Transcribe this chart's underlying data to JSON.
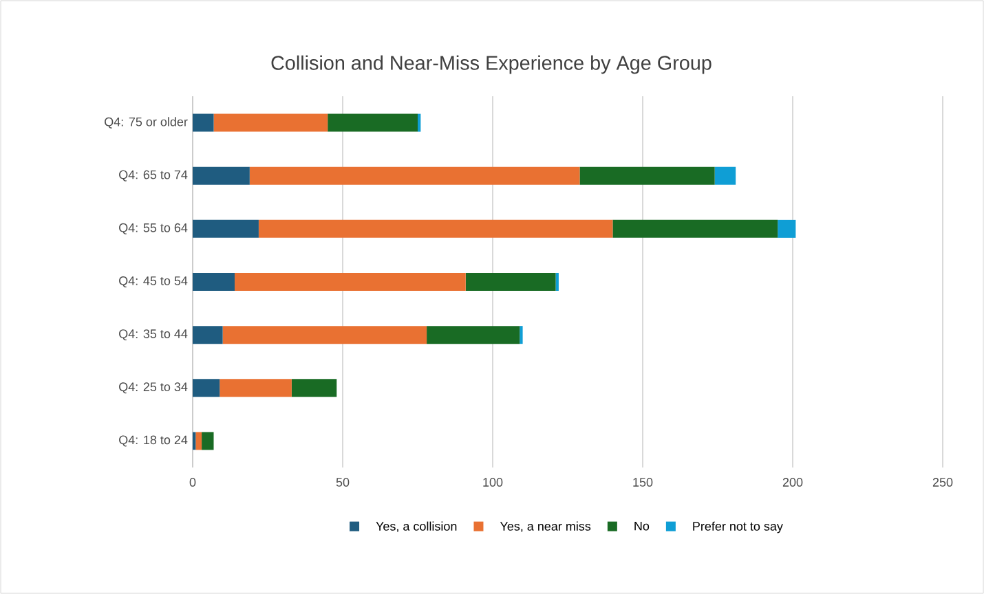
{
  "chart_data": {
    "type": "bar",
    "orientation": "horizontal",
    "stacked": true,
    "title": "Collision and Near-Miss Experience by Age Group",
    "categories": [
      "Q4: 75 or older",
      "Q4: 65 to 74",
      "Q4: 55 to 64",
      "Q4: 45 to 54",
      "Q4: 35 to 44",
      "Q4: 25 to 34",
      "Q4: 18 to 24"
    ],
    "series": [
      {
        "name": "Yes, a collision",
        "color": "#1f5c80",
        "values": [
          7,
          19,
          22,
          14,
          10,
          9,
          1
        ]
      },
      {
        "name": "Yes, a near miss",
        "color": "#e97132",
        "values": [
          38,
          110,
          118,
          77,
          68,
          24,
          2
        ]
      },
      {
        "name": "No",
        "color": "#196b24",
        "values": [
          30,
          45,
          55,
          30,
          31,
          15,
          4
        ]
      },
      {
        "name": "Prefer not to say",
        "color": "#0f9ed5",
        "values": [
          1,
          7,
          6,
          1,
          1,
          0,
          0
        ]
      }
    ],
    "xlim": [
      0,
      250
    ],
    "xticks": [
      0,
      50,
      100,
      150,
      200,
      250
    ],
    "grid": "x",
    "legend": "bottom"
  }
}
